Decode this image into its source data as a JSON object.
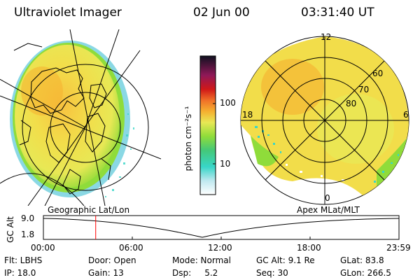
{
  "header": {
    "title": "Ultraviolet Imager",
    "date": "02 Jun 00",
    "time": "03:31:40 UT"
  },
  "colorbar": {
    "unit_label": "photon cm⁻²s⁻¹",
    "ticks": [
      "100",
      "10"
    ],
    "scale": "log"
  },
  "left_panel": {
    "caption": "Geographic Lat/Lon"
  },
  "right_panel": {
    "caption": "Apex MLat/MLT",
    "mlt_labels": [
      "12",
      "18",
      "6",
      "0"
    ],
    "lat_labels": [
      "60",
      "70",
      "80"
    ]
  },
  "altitude_plot": {
    "ylabel": "GC Alt",
    "yticks": [
      "9.0",
      "1.8"
    ],
    "xticks": [
      "00:00",
      "06:00",
      "12:00",
      "18:00",
      "23:59"
    ],
    "current_time_marker_hours": 3.53,
    "marker_color": "#ff0000"
  },
  "info": {
    "row1": [
      "Flt: LBHS",
      "Door: Open",
      "Mode: Normal",
      "GC Alt: 9.1 Re",
      "GLat: 83.8"
    ],
    "row2": [
      "IP: 18.0",
      "Gain: 13",
      "Dsp:     5.2",
      "Seq: 30",
      "GLon: 266.5"
    ]
  },
  "colors": {
    "yellow": "#f2e04a",
    "orange": "#f5b030",
    "green": "#7fd83a",
    "cyan": "#38d6c8"
  }
}
